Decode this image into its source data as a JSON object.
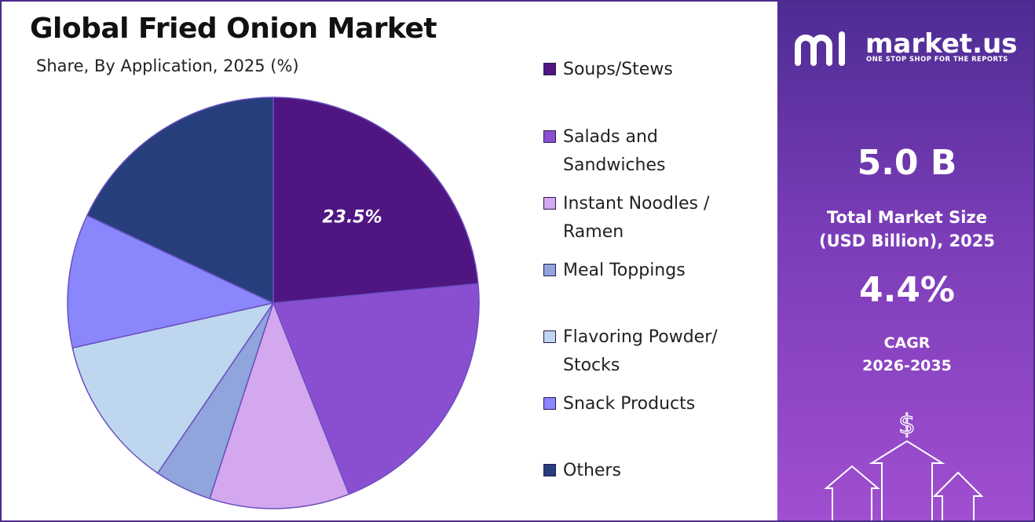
{
  "title": "Global Fried Onion Market",
  "subtitle": "Share, By Application, 2025 (%)",
  "chart_data": {
    "type": "pie",
    "title": "Global Fried Onion Market",
    "subtitle": "Share, By Application, 2025 (%)",
    "categories": [
      "Soups/Stews",
      "Salads and Sandwiches",
      "Instant Noodles / Ramen",
      "Meal Toppings",
      "Flavoring Powder/ Stocks",
      "Snack Products",
      "Others"
    ],
    "values": [
      23.5,
      20.5,
      11.0,
      4.5,
      12.0,
      10.5,
      18.0
    ],
    "colors": [
      "#4f1682",
      "#8a4fd0",
      "#d3a8ee",
      "#8fa5db",
      "#bed7ee",
      "#8a86fb",
      "#263f7c"
    ],
    "data_labels": [
      "23.5%",
      "",
      "",
      "",
      "",
      "",
      ""
    ],
    "legend_position": "right"
  },
  "legend": [
    {
      "label": "Soups/Stews",
      "color": "#4f1682"
    },
    {
      "label": "Salads and Sandwiches",
      "color": "#8a4fd0"
    },
    {
      "label": "Instant Noodles / Ramen",
      "color": "#d3a8ee"
    },
    {
      "label": "Meal Toppings",
      "color": "#8fa5db"
    },
    {
      "label": "Flavoring Powder/ Stocks",
      "color": "#bed7ee"
    },
    {
      "label": "Snack Products",
      "color": "#8a86fb"
    },
    {
      "label": "Others",
      "color": "#263f7c"
    }
  ],
  "side": {
    "brand_name": "market.us",
    "brand_tagline": "ONE STOP SHOP FOR THE REPORTS",
    "market_size_value": "5.0 B",
    "market_size_label_1": "Total Market Size",
    "market_size_label_2": "(USD Billion), 2025",
    "cagr_value": "4.4%",
    "cagr_label_1": "CAGR",
    "cagr_label_2": "2026-2035",
    "icon": "dollar-growth-arrows-icon"
  }
}
